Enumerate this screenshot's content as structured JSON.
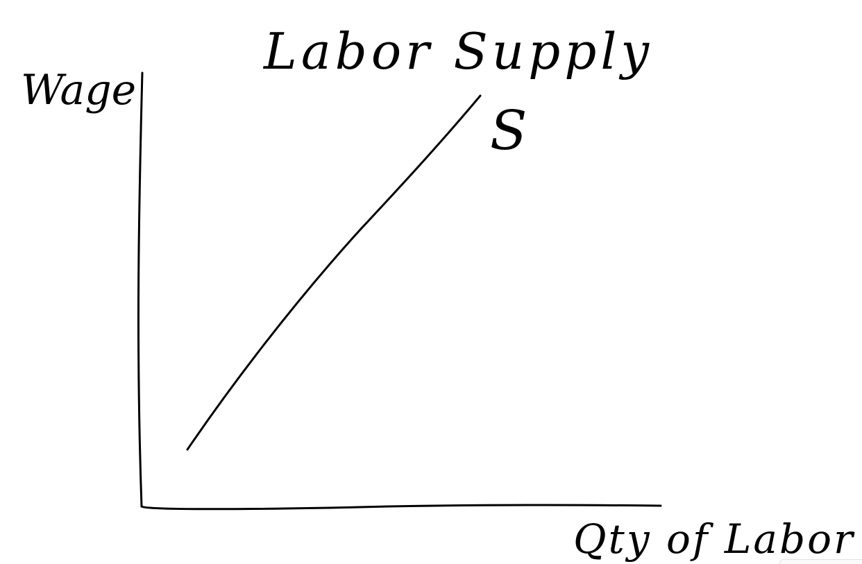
{
  "diagram": {
    "title": "Labor Supply",
    "y_axis_label": "Wage",
    "x_axis_label": "Qty of Labor",
    "curve_label": "S",
    "ink_color": "#000000",
    "background_color": "#ffffff"
  }
}
